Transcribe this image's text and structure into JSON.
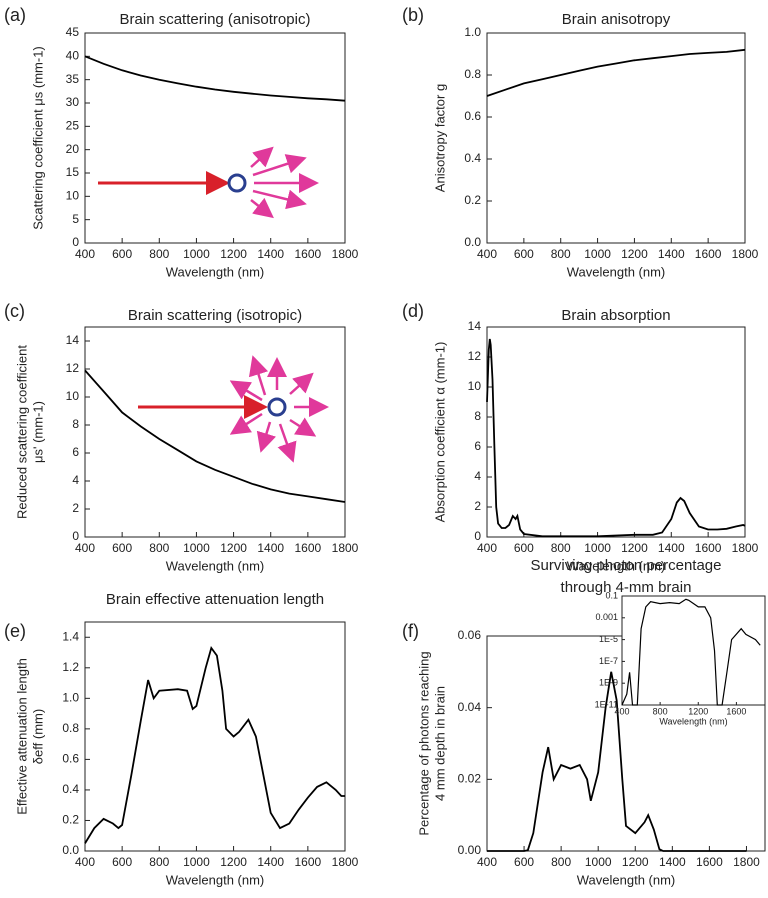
{
  "chart_data": [
    {
      "type": "line",
      "panel": "(a)",
      "title": "Brain scattering (anisotropic)",
      "xlabel": "Wavelength (nm)",
      "ylabel": [
        "Scattering coefficient μs (mm-1)"
      ],
      "x": [
        400,
        500,
        600,
        700,
        800,
        900,
        1000,
        1100,
        1200,
        1300,
        1400,
        1500,
        1600,
        1700,
        1800
      ],
      "values": [
        40,
        38.4,
        37.0,
        35.9,
        35.0,
        34.2,
        33.5,
        32.9,
        32.4,
        32.0,
        31.6,
        31.3,
        31.0,
        30.8,
        30.5
      ],
      "color": "#000000",
      "xlim": [
        400,
        1800
      ],
      "xticks": [
        400,
        600,
        800,
        1000,
        1200,
        1400,
        1600,
        1800
      ],
      "ylim": [
        0,
        45
      ],
      "yticks": [
        0,
        5,
        10,
        15,
        20,
        25,
        30,
        35,
        40,
        45
      ]
    },
    {
      "type": "line",
      "panel": "(b)",
      "title": "Brain anisotropy",
      "xlabel": "Wavelength (nm)",
      "ylabel": [
        "Anisotropy factor g"
      ],
      "x": [
        400,
        500,
        600,
        700,
        800,
        900,
        1000,
        1100,
        1200,
        1300,
        1400,
        1500,
        1600,
        1700,
        1800
      ],
      "values": [
        0.7,
        0.73,
        0.76,
        0.78,
        0.8,
        0.82,
        0.84,
        0.855,
        0.87,
        0.88,
        0.89,
        0.9,
        0.905,
        0.91,
        0.92
      ],
      "color": "#000000",
      "xlim": [
        400,
        1800
      ],
      "xticks": [
        400,
        600,
        800,
        1000,
        1200,
        1400,
        1600,
        1800
      ],
      "ylim": [
        0,
        1
      ],
      "yticks": [
        {
          "value": 0,
          "label": "0.0"
        },
        0.2,
        0.4,
        0.6,
        0.8,
        {
          "value": 1,
          "label": "1.0"
        }
      ]
    },
    {
      "type": "line",
      "panel": "(c)",
      "title": "Brain scattering (isotropic)",
      "xlabel": "Wavelength (nm)",
      "ylabel": [
        "Reduced scattering coefficient",
        "μs' (mm-1)"
      ],
      "x": [
        400,
        500,
        600,
        700,
        800,
        900,
        1000,
        1100,
        1200,
        1300,
        1400,
        1500,
        1600,
        1700,
        1800
      ],
      "values": [
        11.9,
        10.4,
        8.9,
        7.9,
        7.0,
        6.2,
        5.4,
        4.8,
        4.3,
        3.8,
        3.4,
        3.1,
        2.9,
        2.7,
        2.5
      ],
      "color": "#000000",
      "xlim": [
        400,
        1800
      ],
      "xticks": [
        400,
        600,
        800,
        1000,
        1200,
        1400,
        1600,
        1800
      ],
      "ylim": [
        0,
        15
      ],
      "yticks": [
        0,
        2,
        4,
        6,
        8,
        10,
        12,
        14
      ]
    },
    {
      "type": "line",
      "panel": "(d)",
      "title": "Brain absorption",
      "xlabel": "Wavelength (nm)",
      "ylabel": [
        "Absorption coefficient α (mm-1)"
      ],
      "x": [
        400,
        410,
        415,
        420,
        430,
        440,
        450,
        460,
        480,
        500,
        520,
        540,
        555,
        565,
        580,
        600,
        700,
        800,
        900,
        1000,
        1100,
        1200,
        1300,
        1350,
        1400,
        1430,
        1450,
        1470,
        1500,
        1550,
        1600,
        1650,
        1700,
        1750,
        1790,
        1800
      ],
      "values": [
        9,
        12.5,
        13.2,
        12.8,
        10.5,
        6,
        2,
        0.9,
        0.6,
        0.6,
        0.8,
        1.4,
        1.2,
        1.4,
        0.5,
        0.2,
        0.05,
        0.05,
        0.05,
        0.05,
        0.1,
        0.15,
        0.15,
        0.3,
        1.2,
        2.3,
        2.6,
        2.4,
        1.6,
        0.7,
        0.5,
        0.5,
        0.55,
        0.7,
        0.8,
        0.75
      ],
      "color": "#000000",
      "xlim": [
        400,
        1800
      ],
      "xticks": [
        400,
        600,
        800,
        1000,
        1200,
        1400,
        1600,
        1800
      ],
      "ylim": [
        0,
        14
      ],
      "yticks": [
        0,
        2,
        4,
        6,
        8,
        10,
        12,
        14
      ]
    },
    {
      "type": "line",
      "panel": "(e)",
      "title": "Brain effective attenuation length",
      "xlabel": "Wavelength (nm)",
      "ylabel": [
        "Effective attenuation length",
        "δeff (mm)"
      ],
      "x": [
        400,
        450,
        500,
        550,
        580,
        600,
        650,
        700,
        740,
        770,
        800,
        900,
        950,
        980,
        1000,
        1050,
        1080,
        1110,
        1140,
        1160,
        1200,
        1230,
        1280,
        1320,
        1360,
        1400,
        1450,
        1500,
        1550,
        1600,
        1650,
        1700,
        1750,
        1780,
        1800
      ],
      "values": [
        0.05,
        0.15,
        0.21,
        0.18,
        0.15,
        0.17,
        0.5,
        0.85,
        1.12,
        1.0,
        1.05,
        1.06,
        1.05,
        0.93,
        0.95,
        1.2,
        1.33,
        1.28,
        1.05,
        0.8,
        0.75,
        0.78,
        0.86,
        0.75,
        0.5,
        0.25,
        0.15,
        0.18,
        0.27,
        0.35,
        0.42,
        0.45,
        0.4,
        0.36,
        0.36
      ],
      "color": "#000000",
      "xlim": [
        400,
        1800
      ],
      "xticks": [
        400,
        600,
        800,
        1000,
        1200,
        1400,
        1600,
        1800
      ],
      "ylim": [
        0,
        1.5
      ],
      "yticks": [
        {
          "value": 0,
          "label": "0.0"
        },
        0.2,
        0.4,
        0.6,
        0.8,
        {
          "value": 1,
          "label": "1.0"
        },
        1.2,
        1.4
      ]
    },
    {
      "type": "line",
      "panel": "(f)",
      "title": [
        "Surviving photon percentage",
        "through 4-mm brain"
      ],
      "xlabel": "Wavelength (nm)",
      "ylabel": [
        "Percentage of photons reaching",
        "4 mm depth in brain"
      ],
      "x": [
        400,
        600,
        620,
        650,
        700,
        730,
        760,
        800,
        850,
        900,
        940,
        960,
        1000,
        1040,
        1070,
        1100,
        1130,
        1150,
        1200,
        1250,
        1270,
        1300,
        1330,
        1350,
        1800
      ],
      "values": [
        0,
        0,
        0.0002,
        0.005,
        0.022,
        0.029,
        0.02,
        0.024,
        0.023,
        0.024,
        0.02,
        0.014,
        0.022,
        0.04,
        0.05,
        0.042,
        0.02,
        0.007,
        0.005,
        0.008,
        0.01,
        0.006,
        0.0005,
        0,
        0
      ],
      "color": "#000000",
      "xlim": [
        400,
        1900
      ],
      "xticks": [
        400,
        600,
        800,
        1000,
        1200,
        1400,
        1600,
        1800
      ],
      "ylim": [
        0,
        0.06
      ],
      "yticks": [
        {
          "value": 0,
          "label": "0.00"
        },
        {
          "value": 0.02,
          "label": "0.02"
        },
        {
          "value": 0.04,
          "label": "0.04"
        },
        {
          "value": 0.06,
          "label": "0.06"
        }
      ]
    },
    {
      "type": "line",
      "xlabel": "Wavelength (nm)",
      "log_y": true,
      "x": [
        400,
        450,
        480,
        510,
        560,
        600,
        650,
        700,
        800,
        900,
        1000,
        1070,
        1100,
        1200,
        1270,
        1330,
        1370,
        1400,
        1450,
        1500,
        1550,
        1650,
        1700,
        1800,
        1850
      ],
      "values": [
        1e-11,
        1e-10,
        1e-08,
        1e-11,
        1e-11,
        0.0001,
        0.01,
        0.03,
        0.02,
        0.025,
        0.02,
        0.05,
        0.04,
        0.01,
        0.01,
        0.001,
        1e-06,
        1e-11,
        1e-11,
        1e-08,
        1e-05,
        0.0001,
        3e-05,
        1e-05,
        3e-06
      ],
      "color": "#000000",
      "xlim": [
        400,
        1900
      ],
      "xticks": [
        400,
        800,
        1200,
        1600
      ],
      "ylim": [
        1e-11,
        0.1
      ],
      "yticks": [
        0.1,
        0.001,
        {
          "value": 1e-05,
          "label": "1E-5"
        },
        {
          "value": 1e-07,
          "label": "1E-7"
        },
        {
          "value": 1e-09,
          "label": "1E-9"
        },
        {
          "value": 1e-11,
          "label": "1E-11"
        }
      ]
    }
  ]
}
